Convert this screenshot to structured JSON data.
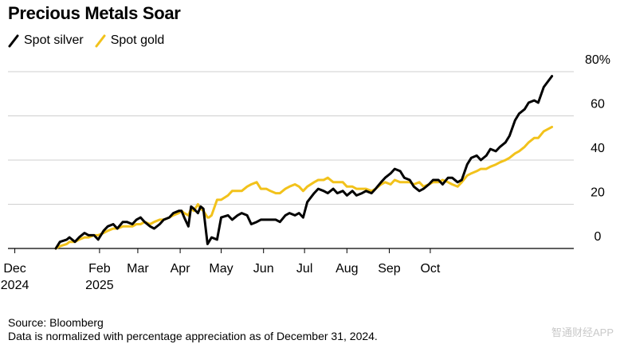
{
  "title": "Precious Metals Soar",
  "legend": [
    {
      "label": "Spot silver",
      "color": "#000000"
    },
    {
      "label": "Spot gold",
      "color": "#f2c21b"
    }
  ],
  "footer": {
    "source": "Source: Bloomberg",
    "note": "Data is normalized with percentage appreciation as of December 31, 2024."
  },
  "watermark": "智通财经APP",
  "chart_data": {
    "type": "line",
    "title": "Precious Metals Soar",
    "x_unit": "date",
    "ylabel": "",
    "ylim": [
      0,
      80
    ],
    "y_ticks": [
      "80%",
      "60",
      "40",
      "20",
      "0"
    ],
    "x_ticks": [
      {
        "label": [
          "Dec",
          "2024"
        ],
        "date": "2024-12-01"
      },
      {
        "label": [
          "Feb",
          "2025"
        ],
        "date": "2025-02-01"
      },
      {
        "label": [
          "Mar"
        ],
        "date": "2025-03-01"
      },
      {
        "label": [
          "Apr"
        ],
        "date": "2025-04-01"
      },
      {
        "label": [
          "May"
        ],
        "date": "2025-05-01"
      },
      {
        "label": [
          "Jun"
        ],
        "date": "2025-06-01"
      },
      {
        "label": [
          "Jul"
        ],
        "date": "2025-07-01"
      },
      {
        "label": [
          "Aug"
        ],
        "date": "2025-08-01"
      },
      {
        "label": [
          "Sep"
        ],
        "date": "2025-09-01"
      },
      {
        "label": [
          "Oct"
        ],
        "date": "2025-10-01"
      }
    ],
    "grid": true,
    "legend_position": "top-left",
    "series": [
      {
        "name": "Spot silver",
        "color": "#000000",
        "points": [
          [
            "2024-12-31",
            0
          ],
          [
            "2025-01-03",
            3
          ],
          [
            "2025-01-08",
            4
          ],
          [
            "2025-01-10",
            5
          ],
          [
            "2025-01-14",
            3
          ],
          [
            "2025-01-17",
            5
          ],
          [
            "2025-01-21",
            7
          ],
          [
            "2025-01-24",
            6
          ],
          [
            "2025-01-28",
            6
          ],
          [
            "2025-01-31",
            4
          ],
          [
            "2025-02-04",
            8
          ],
          [
            "2025-02-07",
            10
          ],
          [
            "2025-02-11",
            11
          ],
          [
            "2025-02-14",
            9
          ],
          [
            "2025-02-18",
            12
          ],
          [
            "2025-02-21",
            12
          ],
          [
            "2025-02-25",
            11
          ],
          [
            "2025-02-28",
            13
          ],
          [
            "2025-03-03",
            14
          ],
          [
            "2025-03-06",
            12
          ],
          [
            "2025-03-10",
            10
          ],
          [
            "2025-03-13",
            9
          ],
          [
            "2025-03-17",
            11
          ],
          [
            "2025-03-20",
            13
          ],
          [
            "2025-03-24",
            14
          ],
          [
            "2025-03-27",
            16
          ],
          [
            "2025-03-31",
            17
          ],
          [
            "2025-04-02",
            17
          ],
          [
            "2025-04-04",
            14
          ],
          [
            "2025-04-07",
            10
          ],
          [
            "2025-04-09",
            19
          ],
          [
            "2025-04-11",
            18
          ],
          [
            "2025-04-14",
            16
          ],
          [
            "2025-04-16",
            19
          ],
          [
            "2025-04-18",
            18
          ],
          [
            "2025-04-21",
            2
          ],
          [
            "2025-04-22",
            3
          ],
          [
            "2025-04-24",
            5
          ],
          [
            "2025-04-28",
            4
          ],
          [
            "2025-05-01",
            14
          ],
          [
            "2025-05-06",
            15
          ],
          [
            "2025-05-09",
            13
          ],
          [
            "2025-05-13",
            15
          ],
          [
            "2025-05-16",
            16
          ],
          [
            "2025-05-20",
            15
          ],
          [
            "2025-05-23",
            11
          ],
          [
            "2025-05-27",
            12
          ],
          [
            "2025-05-30",
            13
          ],
          [
            "2025-06-03",
            13
          ],
          [
            "2025-06-06",
            13
          ],
          [
            "2025-06-10",
            13
          ],
          [
            "2025-06-13",
            12
          ],
          [
            "2025-06-17",
            15
          ],
          [
            "2025-06-20",
            16
          ],
          [
            "2025-06-24",
            15
          ],
          [
            "2025-06-27",
            16
          ],
          [
            "2025-06-30",
            14
          ],
          [
            "2025-07-03",
            21
          ],
          [
            "2025-07-08",
            25
          ],
          [
            "2025-07-11",
            27
          ],
          [
            "2025-07-15",
            26
          ],
          [
            "2025-07-18",
            25
          ],
          [
            "2025-07-22",
            27
          ],
          [
            "2025-07-25",
            25
          ],
          [
            "2025-07-29",
            26
          ],
          [
            "2025-08-01",
            24
          ],
          [
            "2025-08-05",
            26
          ],
          [
            "2025-08-08",
            24
          ],
          [
            "2025-08-12",
            25
          ],
          [
            "2025-08-15",
            26
          ],
          [
            "2025-08-19",
            25
          ],
          [
            "2025-08-22",
            27
          ],
          [
            "2025-08-26",
            30
          ],
          [
            "2025-08-29",
            32
          ],
          [
            "2025-09-02",
            34
          ],
          [
            "2025-09-05",
            36
          ],
          [
            "2025-09-09",
            35
          ],
          [
            "2025-09-12",
            32
          ],
          [
            "2025-09-16",
            31
          ],
          [
            "2025-09-19",
            28
          ],
          [
            "2025-09-23",
            26
          ],
          [
            "2025-09-26",
            27
          ],
          [
            "2025-09-30",
            29
          ],
          [
            "2025-10-03",
            31
          ],
          [
            "2025-10-07",
            31
          ],
          [
            "2025-10-10",
            29
          ],
          [
            "2025-10-14",
            32
          ],
          [
            "2025-10-17",
            32
          ],
          [
            "2025-10-21",
            30
          ],
          [
            "2025-10-24",
            31
          ],
          [
            "2025-10-28",
            38
          ],
          [
            "2025-10-31",
            41
          ],
          [
            "2025-11-04",
            42
          ],
          [
            "2025-11-07",
            40
          ],
          [
            "2025-11-11",
            42
          ],
          [
            "2025-11-14",
            45
          ],
          [
            "2025-11-18",
            44
          ],
          [
            "2025-11-21",
            46
          ],
          [
            "2025-11-25",
            48
          ],
          [
            "2025-11-28",
            51
          ],
          [
            "2025-12-02",
            58
          ],
          [
            "2025-12-05",
            61
          ],
          [
            "2025-12-09",
            63
          ],
          [
            "2025-12-12",
            66
          ],
          [
            "2025-12-16",
            67
          ],
          [
            "2025-12-19",
            66
          ],
          [
            "2025-12-23",
            73
          ],
          [
            "2025-12-29",
            78
          ]
        ]
      },
      {
        "name": "Spot gold",
        "color": "#f2c21b",
        "points": [
          [
            "2024-12-31",
            0
          ],
          [
            "2025-01-03",
            1
          ],
          [
            "2025-01-08",
            2
          ],
          [
            "2025-01-10",
            3
          ],
          [
            "2025-01-14",
            3
          ],
          [
            "2025-01-17",
            4
          ],
          [
            "2025-01-21",
            5
          ],
          [
            "2025-01-24",
            5
          ],
          [
            "2025-01-28",
            6
          ],
          [
            "2025-01-31",
            6
          ],
          [
            "2025-02-04",
            7
          ],
          [
            "2025-02-07",
            8
          ],
          [
            "2025-02-11",
            9
          ],
          [
            "2025-02-14",
            9
          ],
          [
            "2025-02-18",
            10
          ],
          [
            "2025-02-21",
            10
          ],
          [
            "2025-02-25",
            10
          ],
          [
            "2025-02-28",
            11
          ],
          [
            "2025-03-03",
            11
          ],
          [
            "2025-03-06",
            12
          ],
          [
            "2025-03-10",
            11
          ],
          [
            "2025-03-13",
            12
          ],
          [
            "2025-03-17",
            13
          ],
          [
            "2025-03-20",
            13
          ],
          [
            "2025-03-24",
            14
          ],
          [
            "2025-03-27",
            15
          ],
          [
            "2025-03-31",
            16
          ],
          [
            "2025-04-02",
            17
          ],
          [
            "2025-04-04",
            16
          ],
          [
            "2025-04-07",
            15
          ],
          [
            "2025-04-09",
            18
          ],
          [
            "2025-04-11",
            17
          ],
          [
            "2025-04-14",
            20
          ],
          [
            "2025-04-16",
            18
          ],
          [
            "2025-04-18",
            17
          ],
          [
            "2025-04-21",
            14
          ],
          [
            "2025-04-22",
            14
          ],
          [
            "2025-04-24",
            15
          ],
          [
            "2025-04-28",
            22
          ],
          [
            "2025-05-01",
            22
          ],
          [
            "2025-05-06",
            24
          ],
          [
            "2025-05-09",
            26
          ],
          [
            "2025-05-13",
            26
          ],
          [
            "2025-05-16",
            26
          ],
          [
            "2025-05-20",
            28
          ],
          [
            "2025-05-23",
            29
          ],
          [
            "2025-05-27",
            30
          ],
          [
            "2025-05-30",
            27
          ],
          [
            "2025-06-03",
            27
          ],
          [
            "2025-06-06",
            26
          ],
          [
            "2025-06-10",
            25
          ],
          [
            "2025-06-13",
            25
          ],
          [
            "2025-06-17",
            27
          ],
          [
            "2025-06-20",
            28
          ],
          [
            "2025-06-24",
            29
          ],
          [
            "2025-06-27",
            28
          ],
          [
            "2025-06-30",
            26
          ],
          [
            "2025-07-03",
            28
          ],
          [
            "2025-07-08",
            30
          ],
          [
            "2025-07-11",
            31
          ],
          [
            "2025-07-15",
            31
          ],
          [
            "2025-07-18",
            32
          ],
          [
            "2025-07-22",
            30
          ],
          [
            "2025-07-25",
            30
          ],
          [
            "2025-07-29",
            30
          ],
          [
            "2025-08-01",
            28
          ],
          [
            "2025-08-05",
            28
          ],
          [
            "2025-08-08",
            27
          ],
          [
            "2025-08-12",
            27
          ],
          [
            "2025-08-15",
            27
          ],
          [
            "2025-08-19",
            26
          ],
          [
            "2025-08-22",
            27
          ],
          [
            "2025-08-26",
            29
          ],
          [
            "2025-08-29",
            30
          ],
          [
            "2025-09-02",
            29
          ],
          [
            "2025-09-05",
            31
          ],
          [
            "2025-09-09",
            30
          ],
          [
            "2025-09-12",
            30
          ],
          [
            "2025-09-16",
            30
          ],
          [
            "2025-09-19",
            29
          ],
          [
            "2025-09-23",
            30
          ],
          [
            "2025-09-26",
            28
          ],
          [
            "2025-09-30",
            29
          ],
          [
            "2025-10-03",
            30
          ],
          [
            "2025-10-07",
            30
          ],
          [
            "2025-10-10",
            31
          ],
          [
            "2025-10-14",
            30
          ],
          [
            "2025-10-17",
            29
          ],
          [
            "2025-10-21",
            28
          ],
          [
            "2025-10-24",
            30
          ],
          [
            "2025-10-28",
            33
          ],
          [
            "2025-10-31",
            34
          ],
          [
            "2025-11-04",
            35
          ],
          [
            "2025-11-07",
            36
          ],
          [
            "2025-11-11",
            36
          ],
          [
            "2025-11-14",
            37
          ],
          [
            "2025-11-18",
            38
          ],
          [
            "2025-11-21",
            39
          ],
          [
            "2025-11-25",
            40
          ],
          [
            "2025-11-28",
            41
          ],
          [
            "2025-12-02",
            43
          ],
          [
            "2025-12-05",
            44
          ],
          [
            "2025-12-09",
            46
          ],
          [
            "2025-12-12",
            48
          ],
          [
            "2025-12-16",
            50
          ],
          [
            "2025-12-19",
            50
          ],
          [
            "2025-12-23",
            53
          ],
          [
            "2025-12-29",
            55
          ]
        ]
      }
    ]
  }
}
